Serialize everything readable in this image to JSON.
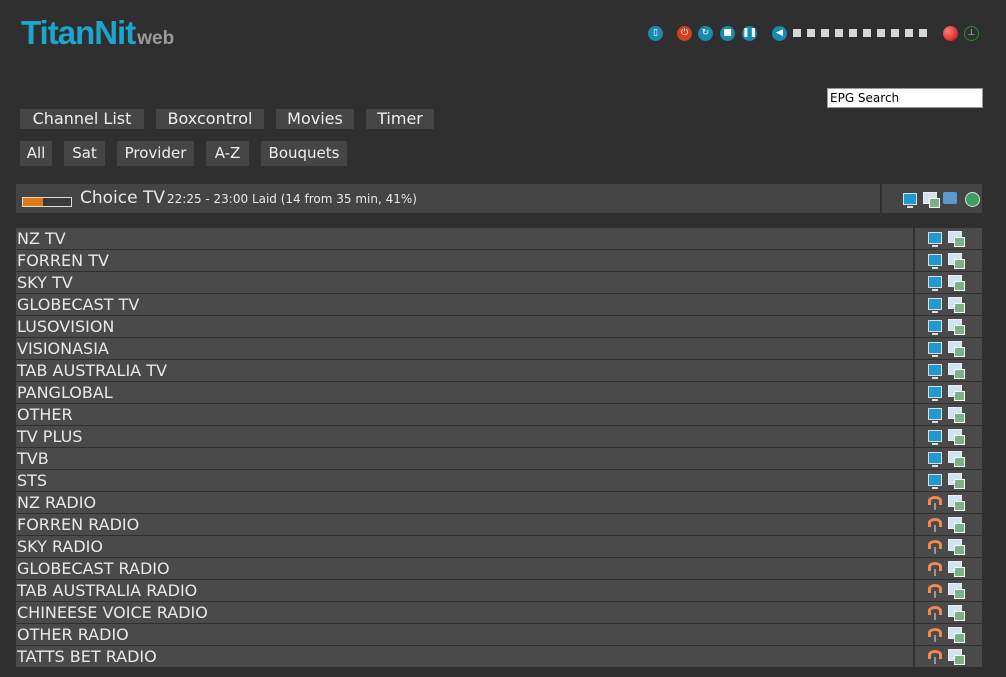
{
  "logo": {
    "main": "TitanNit",
    "sub": "web"
  },
  "controls": [
    {
      "name": "remote-icon",
      "g": "▯",
      "color": "#1a8ab0"
    },
    {
      "name": "power-icon",
      "g": "⏻",
      "color": "#d0401a"
    },
    {
      "name": "refresh-icon",
      "g": "↻",
      "color": "#1a8ab0"
    },
    {
      "name": "stop-icon",
      "g": "■",
      "color": "#1a8ab0"
    },
    {
      "name": "pause-icon",
      "g": "❚❚",
      "color": "#1a8ab0"
    },
    {
      "name": "volume-icon",
      "g": "◀",
      "color": "#1a8ab0"
    }
  ],
  "volume_steps": 10,
  "epg_search": {
    "value": "EPG Search"
  },
  "nav": [
    "Channel List",
    "Boxcontrol",
    "Movies",
    "Timer"
  ],
  "filters": [
    "All",
    "Sat",
    "Provider",
    "A-Z",
    "Bouquets"
  ],
  "current": {
    "channel": "Choice TV",
    "details": "22:25 - 23:00 Laid (14 from 35 min, 41%)",
    "progress_percent": 41
  },
  "channels": [
    {
      "name": "NZ TV",
      "type": "tv"
    },
    {
      "name": "FORREN TV",
      "type": "tv"
    },
    {
      "name": "SKY TV",
      "type": "tv"
    },
    {
      "name": "GLOBECAST TV",
      "type": "tv"
    },
    {
      "name": "LUSOVISION",
      "type": "tv"
    },
    {
      "name": "VISIONASIA",
      "type": "tv"
    },
    {
      "name": "TAB AUSTRALIA TV",
      "type": "tv"
    },
    {
      "name": "PANGLOBAL",
      "type": "tv"
    },
    {
      "name": "OTHER",
      "type": "tv"
    },
    {
      "name": "TV PLUS",
      "type": "tv"
    },
    {
      "name": "TVB",
      "type": "tv"
    },
    {
      "name": "STS",
      "type": "tv"
    },
    {
      "name": "NZ RADIO",
      "type": "radio"
    },
    {
      "name": "FORREN RADIO",
      "type": "radio"
    },
    {
      "name": "SKY RADIO",
      "type": "radio"
    },
    {
      "name": "GLOBECAST RADIO",
      "type": "radio"
    },
    {
      "name": "TAB AUSTRALIA RADIO",
      "type": "radio"
    },
    {
      "name": "CHINEESE VOICE RADIO",
      "type": "radio"
    },
    {
      "name": "OTHER RADIO",
      "type": "radio"
    },
    {
      "name": "TATTS BET RADIO",
      "type": "radio"
    }
  ]
}
